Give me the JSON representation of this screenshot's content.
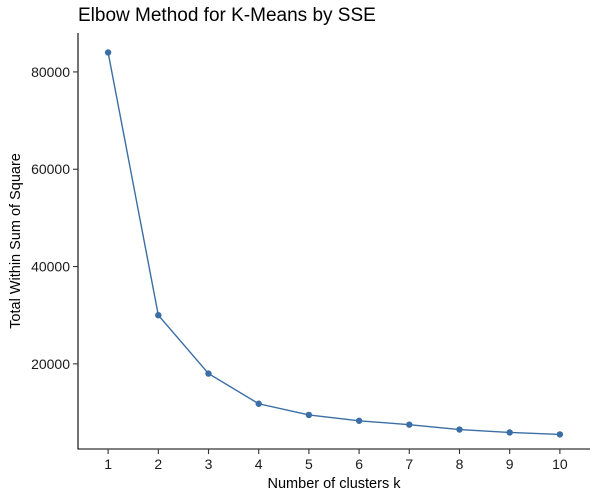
{
  "chart_data": {
    "type": "line",
    "title": "Elbow Method for K-Means by SSE",
    "xlabel": "Number of clusters k",
    "ylabel": "Total Within Sum of Square",
    "x": [
      1,
      2,
      3,
      4,
      5,
      6,
      7,
      8,
      9,
      10
    ],
    "x_tick_labels": [
      "1",
      "2",
      "3",
      "4",
      "5",
      "6",
      "7",
      "8",
      "9",
      "10"
    ],
    "y_ticks": [
      20000,
      40000,
      60000,
      80000
    ],
    "y_tick_labels": [
      "20000",
      "40000",
      "60000",
      "80000"
    ],
    "series": [
      {
        "values": [
          84000,
          30000,
          18000,
          11800,
          9500,
          8300,
          7500,
          6500,
          5900,
          5500
        ],
        "color": "#3a6ea5"
      }
    ],
    "xlim": [
      0.4,
      10.6
    ],
    "ylim": [
      2500,
      88000
    ],
    "grid": false,
    "legend": "none"
  }
}
